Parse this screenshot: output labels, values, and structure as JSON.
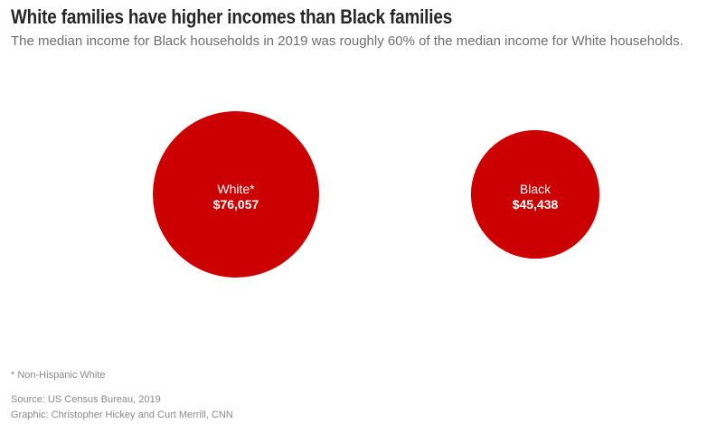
{
  "header": {
    "title": "White families have higher incomes than Black families",
    "subtitle": "The median income for Black households in 2019 was roughly 60% of the median income for White households."
  },
  "chart_data": {
    "type": "bubble",
    "title": "White families have higher incomes than Black families",
    "subtitle": "The median income for Black households in 2019 was roughly 60% of the median income for White households.",
    "categories": [
      "White*",
      "Black"
    ],
    "values": [
      76057,
      45438
    ],
    "value_labels": [
      "$76,057",
      "$45,438"
    ],
    "units": "USD",
    "color": "#cc0000",
    "grid": false,
    "legend": "none"
  },
  "footer": {
    "note": "* Non-Hispanic White",
    "source": "Source: US Census Bureau, 2019",
    "credit": "Graphic: Christopher Hickey and Curt Merrill, CNN"
  }
}
